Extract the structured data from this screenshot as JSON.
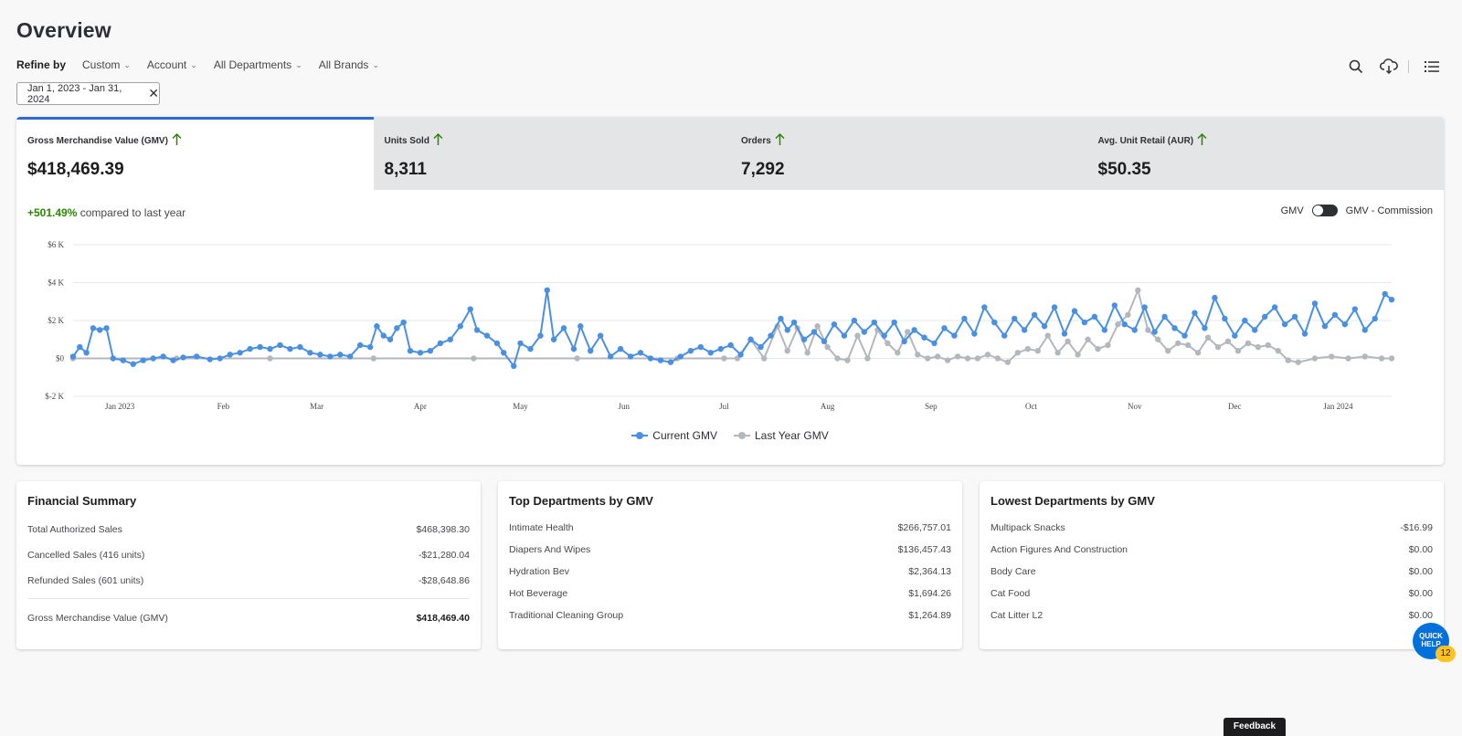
{
  "header": {
    "title": "Overview"
  },
  "refine": {
    "label": "Refine by",
    "filters": [
      {
        "label": "Custom"
      },
      {
        "label": "Account"
      },
      {
        "label": "All Departments"
      },
      {
        "label": "All Brands"
      }
    ],
    "chip": "Jan 1, 2023 - Jan 31, 2024"
  },
  "toolbar": {
    "icons": [
      "search-icon",
      "cloud-download-icon",
      "list-icon"
    ]
  },
  "metrics": [
    {
      "label": "Gross Merchandise Value (GMV)",
      "value": "$418,469.39"
    },
    {
      "label": "Units Sold",
      "value": "8,311"
    },
    {
      "label": "Orders",
      "value": "7,292"
    },
    {
      "label": "Avg. Unit Retail (AUR)",
      "value": "$50.35"
    }
  ],
  "compare": {
    "pct": "+501.49%",
    "text": "compared to last year"
  },
  "toggle": {
    "left": "GMV",
    "right": "GMV - Commission"
  },
  "colors": {
    "current": "#4a90e2",
    "last_year": "#b4b7bd",
    "accent": "#2e6bd4",
    "positive": "#2a8703"
  },
  "chart_data": {
    "type": "line",
    "y_ticks": [
      "$6 K",
      "$4 K",
      "$2 K",
      "$0",
      "$-2 K"
    ],
    "ylim": [
      -2000,
      6000
    ],
    "x_ticks": [
      "Jan 2023",
      "Feb",
      "Mar",
      "Apr",
      "May",
      "Jun",
      "Jul",
      "Aug",
      "Sep",
      "Oct",
      "Nov",
      "Dec",
      "Jan 2024"
    ],
    "x_range": [
      "2023-01-01",
      "2024-01-31"
    ],
    "series": [
      {
        "name": "Current GMV",
        "color": "#4a90e2",
        "points": [
          [
            "2023-01-01",
            100
          ],
          [
            "2023-01-03",
            600
          ],
          [
            "2023-01-05",
            300
          ],
          [
            "2023-01-07",
            1600
          ],
          [
            "2023-01-09",
            1500
          ],
          [
            "2023-01-11",
            1600
          ],
          [
            "2023-01-13",
            0
          ],
          [
            "2023-01-16",
            -100
          ],
          [
            "2023-01-19",
            -300
          ],
          [
            "2023-01-22",
            -100
          ],
          [
            "2023-01-25",
            0
          ],
          [
            "2023-01-28",
            100
          ],
          [
            "2023-01-31",
            -100
          ],
          [
            "2023-02-03",
            50
          ],
          [
            "2023-02-07",
            100
          ],
          [
            "2023-02-11",
            -50
          ],
          [
            "2023-02-14",
            0
          ],
          [
            "2023-02-17",
            200
          ],
          [
            "2023-02-20",
            300
          ],
          [
            "2023-02-23",
            500
          ],
          [
            "2023-02-26",
            600
          ],
          [
            "2023-03-01",
            500
          ],
          [
            "2023-03-04",
            700
          ],
          [
            "2023-03-07",
            500
          ],
          [
            "2023-03-10",
            600
          ],
          [
            "2023-03-13",
            300
          ],
          [
            "2023-03-16",
            200
          ],
          [
            "2023-03-19",
            100
          ],
          [
            "2023-03-22",
            200
          ],
          [
            "2023-03-25",
            100
          ],
          [
            "2023-03-28",
            700
          ],
          [
            "2023-03-31",
            600
          ],
          [
            "2023-04-02",
            1700
          ],
          [
            "2023-04-04",
            1200
          ],
          [
            "2023-04-06",
            1000
          ],
          [
            "2023-04-08",
            1600
          ],
          [
            "2023-04-10",
            1900
          ],
          [
            "2023-04-12",
            400
          ],
          [
            "2023-04-15",
            300
          ],
          [
            "2023-04-18",
            400
          ],
          [
            "2023-04-21",
            800
          ],
          [
            "2023-04-24",
            1000
          ],
          [
            "2023-04-27",
            1700
          ],
          [
            "2023-04-30",
            2600
          ],
          [
            "2023-05-02",
            1500
          ],
          [
            "2023-05-05",
            1200
          ],
          [
            "2023-05-08",
            800
          ],
          [
            "2023-05-10",
            300
          ],
          [
            "2023-05-13",
            -400
          ],
          [
            "2023-05-15",
            800
          ],
          [
            "2023-05-18",
            500
          ],
          [
            "2023-05-21",
            1200
          ],
          [
            "2023-05-23",
            3600
          ],
          [
            "2023-05-25",
            1000
          ],
          [
            "2023-05-28",
            1600
          ],
          [
            "2023-05-31",
            500
          ],
          [
            "2023-06-02",
            1700
          ],
          [
            "2023-06-05",
            400
          ],
          [
            "2023-06-08",
            1200
          ],
          [
            "2023-06-11",
            100
          ],
          [
            "2023-06-14",
            500
          ],
          [
            "2023-06-17",
            100
          ],
          [
            "2023-06-20",
            300
          ],
          [
            "2023-06-23",
            0
          ],
          [
            "2023-06-26",
            -100
          ],
          [
            "2023-06-29",
            -200
          ],
          [
            "2023-07-02",
            100
          ],
          [
            "2023-07-05",
            400
          ],
          [
            "2023-07-08",
            600
          ],
          [
            "2023-07-11",
            300
          ],
          [
            "2023-07-14",
            500
          ],
          [
            "2023-07-17",
            700
          ],
          [
            "2023-07-20",
            200
          ],
          [
            "2023-07-23",
            1000
          ],
          [
            "2023-07-26",
            600
          ],
          [
            "2023-07-29",
            1200
          ],
          [
            "2023-08-01",
            2100
          ],
          [
            "2023-08-03",
            1500
          ],
          [
            "2023-08-05",
            1900
          ],
          [
            "2023-08-08",
            1000
          ],
          [
            "2023-08-11",
            1400
          ],
          [
            "2023-08-14",
            900
          ],
          [
            "2023-08-17",
            1800
          ],
          [
            "2023-08-20",
            1200
          ],
          [
            "2023-08-23",
            2000
          ],
          [
            "2023-08-26",
            1400
          ],
          [
            "2023-08-29",
            1900
          ],
          [
            "2023-09-01",
            1200
          ],
          [
            "2023-09-04",
            1900
          ],
          [
            "2023-09-07",
            900
          ],
          [
            "2023-09-10",
            1500
          ],
          [
            "2023-09-13",
            1100
          ],
          [
            "2023-09-16",
            800
          ],
          [
            "2023-09-19",
            1600
          ],
          [
            "2023-09-22",
            1200
          ],
          [
            "2023-09-25",
            2100
          ],
          [
            "2023-09-28",
            1300
          ],
          [
            "2023-10-01",
            2700
          ],
          [
            "2023-10-04",
            1900
          ],
          [
            "2023-10-07",
            1200
          ],
          [
            "2023-10-10",
            2100
          ],
          [
            "2023-10-13",
            1500
          ],
          [
            "2023-10-16",
            2300
          ],
          [
            "2023-10-19",
            1700
          ],
          [
            "2023-10-22",
            2700
          ],
          [
            "2023-10-25",
            1300
          ],
          [
            "2023-10-28",
            2500
          ],
          [
            "2023-10-31",
            1900
          ],
          [
            "2023-11-03",
            2200
          ],
          [
            "2023-11-06",
            1500
          ],
          [
            "2023-11-09",
            2800
          ],
          [
            "2023-11-12",
            1800
          ],
          [
            "2023-11-15",
            1500
          ],
          [
            "2023-11-18",
            2700
          ],
          [
            "2023-11-21",
            1400
          ],
          [
            "2023-11-24",
            2200
          ],
          [
            "2023-11-27",
            1600
          ],
          [
            "2023-11-30",
            1200
          ],
          [
            "2023-12-03",
            2400
          ],
          [
            "2023-12-06",
            1600
          ],
          [
            "2023-12-09",
            3200
          ],
          [
            "2023-12-12",
            2100
          ],
          [
            "2023-12-15",
            1200
          ],
          [
            "2023-12-18",
            2000
          ],
          [
            "2023-12-21",
            1500
          ],
          [
            "2023-12-24",
            2200
          ],
          [
            "2023-12-27",
            2700
          ],
          [
            "2023-12-30",
            1800
          ],
          [
            "2024-01-02",
            2200
          ],
          [
            "2024-01-05",
            1300
          ],
          [
            "2024-01-08",
            2900
          ],
          [
            "2024-01-11",
            1700
          ],
          [
            "2024-01-14",
            2300
          ],
          [
            "2024-01-17",
            1800
          ],
          [
            "2024-01-20",
            2600
          ],
          [
            "2024-01-23",
            1500
          ],
          [
            "2024-01-26",
            2100
          ],
          [
            "2024-01-29",
            3400
          ],
          [
            "2024-01-31",
            3100
          ]
        ]
      },
      {
        "name": "Last Year GMV",
        "color": "#b4b7bd",
        "points": [
          [
            "2023-01-01",
            0
          ],
          [
            "2023-02-01",
            0
          ],
          [
            "2023-03-01",
            0
          ],
          [
            "2023-04-01",
            0
          ],
          [
            "2023-05-01",
            0
          ],
          [
            "2023-06-01",
            0
          ],
          [
            "2023-07-01",
            0
          ],
          [
            "2023-07-15",
            0
          ],
          [
            "2023-07-19",
            0
          ],
          [
            "2023-07-23",
            1000
          ],
          [
            "2023-07-27",
            0
          ],
          [
            "2023-07-31",
            1700
          ],
          [
            "2023-08-03",
            400
          ],
          [
            "2023-08-06",
            1600
          ],
          [
            "2023-08-09",
            300
          ],
          [
            "2023-08-12",
            1700
          ],
          [
            "2023-08-15",
            600
          ],
          [
            "2023-08-18",
            0
          ],
          [
            "2023-08-21",
            -100
          ],
          [
            "2023-08-24",
            1200
          ],
          [
            "2023-08-27",
            0
          ],
          [
            "2023-08-30",
            1500
          ],
          [
            "2023-09-02",
            800
          ],
          [
            "2023-09-05",
            300
          ],
          [
            "2023-09-08",
            1400
          ],
          [
            "2023-09-11",
            200
          ],
          [
            "2023-09-14",
            0
          ],
          [
            "2023-09-17",
            100
          ],
          [
            "2023-09-20",
            -100
          ],
          [
            "2023-09-23",
            100
          ],
          [
            "2023-09-26",
            0
          ],
          [
            "2023-09-29",
            0
          ],
          [
            "2023-10-02",
            200
          ],
          [
            "2023-10-05",
            0
          ],
          [
            "2023-10-08",
            -200
          ],
          [
            "2023-10-11",
            300
          ],
          [
            "2023-10-14",
            500
          ],
          [
            "2023-10-17",
            400
          ],
          [
            "2023-10-20",
            1200
          ],
          [
            "2023-10-23",
            300
          ],
          [
            "2023-10-26",
            900
          ],
          [
            "2023-10-29",
            200
          ],
          [
            "2023-11-01",
            1000
          ],
          [
            "2023-11-04",
            500
          ],
          [
            "2023-11-07",
            700
          ],
          [
            "2023-11-10",
            1800
          ],
          [
            "2023-11-13",
            2300
          ],
          [
            "2023-11-16",
            3600
          ],
          [
            "2023-11-19",
            1500
          ],
          [
            "2023-11-22",
            1000
          ],
          [
            "2023-11-25",
            400
          ],
          [
            "2023-11-28",
            800
          ],
          [
            "2023-12-01",
            700
          ],
          [
            "2023-12-04",
            300
          ],
          [
            "2023-12-07",
            1100
          ],
          [
            "2023-12-10",
            600
          ],
          [
            "2023-12-13",
            900
          ],
          [
            "2023-12-16",
            400
          ],
          [
            "2023-12-19",
            800
          ],
          [
            "2023-12-22",
            600
          ],
          [
            "2023-12-25",
            700
          ],
          [
            "2023-12-28",
            400
          ],
          [
            "2023-12-31",
            -100
          ],
          [
            "2024-01-03",
            -200
          ],
          [
            "2024-01-08",
            0
          ],
          [
            "2024-01-13",
            100
          ],
          [
            "2024-01-18",
            0
          ],
          [
            "2024-01-23",
            100
          ],
          [
            "2024-01-28",
            0
          ],
          [
            "2024-01-31",
            0
          ]
        ]
      }
    ]
  },
  "legend": {
    "current": "Current GMV",
    "last_year": "Last Year GMV"
  },
  "financial": {
    "title": "Financial Summary",
    "rows": [
      {
        "label": "Total Authorized Sales",
        "value": "$468,398.30"
      },
      {
        "label": "Cancelled Sales (416 units)",
        "value": "-$21,280.04"
      },
      {
        "label": "Refunded Sales (601 units)",
        "value": "-$28,648.86"
      }
    ],
    "total": {
      "label": "Gross Merchandise Value (GMV)",
      "value": "$418,469.40"
    }
  },
  "top_departments": {
    "title": "Top Departments by GMV",
    "rows": [
      {
        "label": "Intimate Health",
        "value": "$266,757.01"
      },
      {
        "label": "Diapers And Wipes",
        "value": "$136,457.43"
      },
      {
        "label": "Hydration Bev",
        "value": "$2,364.13"
      },
      {
        "label": "Hot Beverage",
        "value": "$1,694.26"
      },
      {
        "label": "Traditional Cleaning Group",
        "value": "$1,264.89"
      }
    ]
  },
  "lowest_departments": {
    "title": "Lowest Departments by GMV",
    "rows": [
      {
        "label": "Multipack Snacks",
        "value": "-$16.99"
      },
      {
        "label": "Action Figures And Construction",
        "value": "$0.00"
      },
      {
        "label": "Body Care",
        "value": "$0.00"
      },
      {
        "label": "Cat Food",
        "value": "$0.00"
      },
      {
        "label": "Cat Litter L2",
        "value": "$0.00"
      }
    ]
  },
  "quick_help": {
    "line1": "QUICK",
    "line2": "HELP",
    "badge": "12"
  },
  "feedback": {
    "label": "Feedback"
  }
}
